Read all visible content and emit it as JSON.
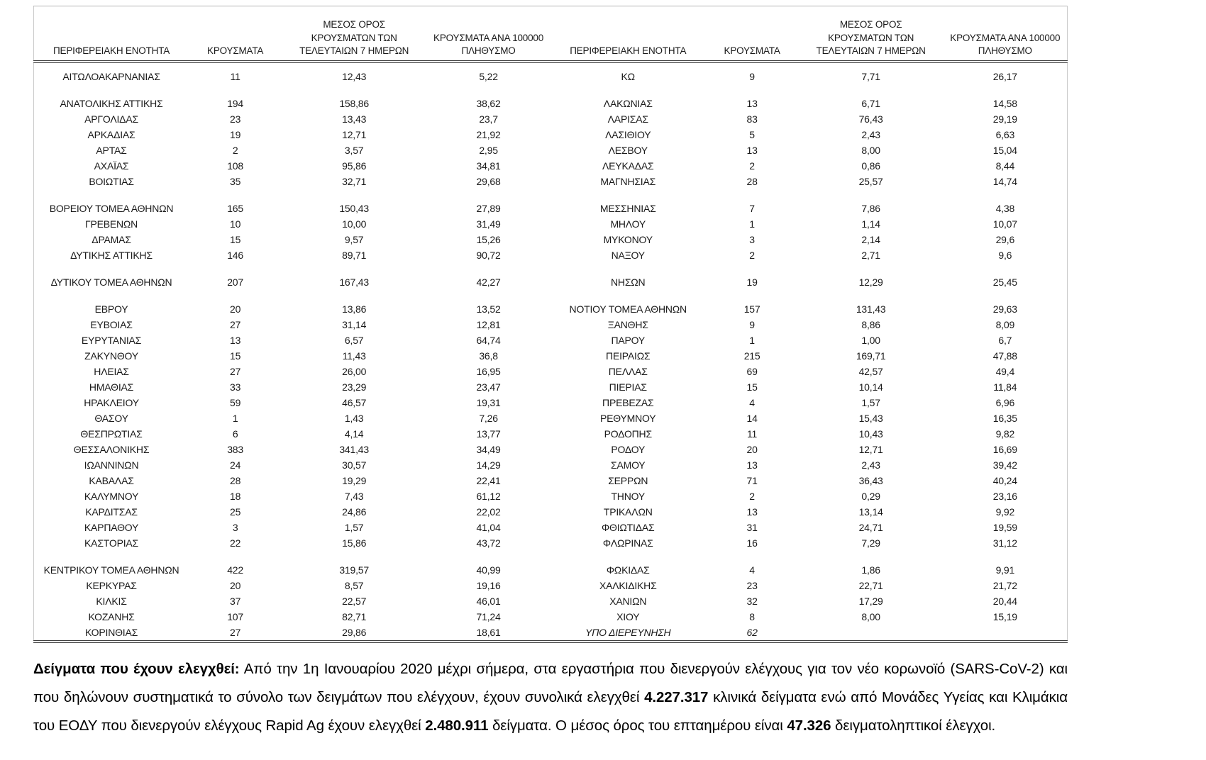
{
  "table": {
    "headers": {
      "region": "ΠΕΡΙΦΕΡΕΙΑΚΗ ΕΝΟΤΗΤΑ",
      "cases": "ΚΡΟΥΣΜΑΤΑ",
      "avg7": "ΜΕΣΟΣ ΟΡΟΣ\nΚΡΟΥΣΜΑΤΩΝ ΤΩΝ\nΤΕΛΕΥΤΑΙΩΝ 7 ΗΜΕΡΩΝ",
      "per100k": "ΚΡΟΥΣΜΑΤΑ ΑΝΑ 100000\nΠΛΗΘΥΣΜΟ"
    },
    "rows": [
      {
        "cells": [
          "ΑΙΤΩΛΟΑΚΑΡΝΑΝΙΑΣ",
          "11",
          "12,43",
          "5,22",
          "ΚΩ",
          "9",
          "7,71",
          "26,17"
        ]
      },
      {
        "cells": [
          "",
          "",
          "",
          "",
          "",
          "",
          "",
          ""
        ]
      },
      {
        "cells": [
          "ΑΝΑΤΟΛΙΚΗΣ ΑΤΤΙΚΗΣ",
          "194",
          "158,86",
          "38,62",
          "ΛΑΚΩΝΙΑΣ",
          "13",
          "6,71",
          "14,58"
        ]
      },
      {
        "cells": [
          "ΑΡΓΟΛΙΔΑΣ",
          "23",
          "13,43",
          "23,7",
          "ΛΑΡΙΣΑΣ",
          "83",
          "76,43",
          "29,19"
        ]
      },
      {
        "cells": [
          "ΑΡΚΑΔΙΑΣ",
          "19",
          "12,71",
          "21,92",
          "ΛΑΣΙΘΙΟΥ",
          "5",
          "2,43",
          "6,63"
        ]
      },
      {
        "cells": [
          "ΑΡΤΑΣ",
          "2",
          "3,57",
          "2,95",
          "ΛΕΣΒΟΥ",
          "13",
          "8,00",
          "15,04"
        ]
      },
      {
        "cells": [
          "ΑΧΑΪΑΣ",
          "108",
          "95,86",
          "34,81",
          "ΛΕΥΚΑΔΑΣ",
          "2",
          "0,86",
          "8,44"
        ]
      },
      {
        "cells": [
          "ΒΟΙΩΤΙΑΣ",
          "35",
          "32,71",
          "29,68",
          "ΜΑΓΝΗΣΙΑΣ",
          "28",
          "25,57",
          "14,74"
        ]
      },
      {
        "cells": [
          "",
          "",
          "",
          "",
          "",
          "",
          "",
          ""
        ]
      },
      {
        "cells": [
          "ΒΟΡΕΙΟΥ ΤΟΜΕΑ ΑΘΗΝΩΝ",
          "165",
          "150,43",
          "27,89",
          "ΜΕΣΣΗΝΙΑΣ",
          "7",
          "7,86",
          "4,38"
        ]
      },
      {
        "cells": [
          "ΓΡΕΒΕΝΩΝ",
          "10",
          "10,00",
          "31,49",
          "ΜΗΛΟΥ",
          "1",
          "1,14",
          "10,07"
        ]
      },
      {
        "cells": [
          "ΔΡΑΜΑΣ",
          "15",
          "9,57",
          "15,26",
          "ΜΥΚΟΝΟΥ",
          "3",
          "2,14",
          "29,6"
        ]
      },
      {
        "cells": [
          "ΔΥΤΙΚΗΣ ΑΤΤΙΚΗΣ",
          "146",
          "89,71",
          "90,72",
          "ΝΑΞΟΥ",
          "2",
          "2,71",
          "9,6"
        ]
      },
      {
        "cells": [
          "",
          "",
          "",
          "",
          "",
          "",
          "",
          ""
        ]
      },
      {
        "cells": [
          "ΔΥΤΙΚΟΥ ΤΟΜΕΑ ΑΘΗΝΩΝ",
          "207",
          "167,43",
          "42,27",
          "ΝΗΣΩΝ",
          "19",
          "12,29",
          "25,45"
        ]
      },
      {
        "cells": [
          "",
          "",
          "",
          "",
          "",
          "",
          "",
          ""
        ]
      },
      {
        "cells": [
          "ΕΒΡΟΥ",
          "20",
          "13,86",
          "13,52",
          "ΝΟΤΙΟΥ ΤΟΜΕΑ ΑΘΗΝΩΝ",
          "157",
          "131,43",
          "29,63"
        ]
      },
      {
        "cells": [
          "ΕΥΒΟΙΑΣ",
          "27",
          "31,14",
          "12,81",
          "ΞΑΝΘΗΣ",
          "9",
          "8,86",
          "8,09"
        ]
      },
      {
        "cells": [
          "ΕΥΡΥΤΑΝΙΑΣ",
          "13",
          "6,57",
          "64,74",
          "ΠΑΡΟΥ",
          "1",
          "1,00",
          "6,7"
        ]
      },
      {
        "cells": [
          "ΖΑΚΥΝΘΟΥ",
          "15",
          "11,43",
          "36,8",
          "ΠΕΙΡΑΙΩΣ",
          "215",
          "169,71",
          "47,88"
        ]
      },
      {
        "cells": [
          "ΗΛΕΙΑΣ",
          "27",
          "26,00",
          "16,95",
          "ΠΕΛΛΑΣ",
          "69",
          "42,57",
          "49,4"
        ]
      },
      {
        "cells": [
          "ΗΜΑΘΙΑΣ",
          "33",
          "23,29",
          "23,47",
          "ΠΙΕΡΙΑΣ",
          "15",
          "10,14",
          "11,84"
        ]
      },
      {
        "cells": [
          "ΗΡΑΚΛΕΙΟΥ",
          "59",
          "46,57",
          "19,31",
          "ΠΡΕΒΕΖΑΣ",
          "4",
          "1,57",
          "6,96"
        ]
      },
      {
        "cells": [
          "ΘΑΣΟΥ",
          "1",
          "1,43",
          "7,26",
          "ΡΕΘΥΜΝΟΥ",
          "14",
          "15,43",
          "16,35"
        ]
      },
      {
        "cells": [
          "ΘΕΣΠΡΩΤΙΑΣ",
          "6",
          "4,14",
          "13,77",
          "ΡΟΔΟΠΗΣ",
          "11",
          "10,43",
          "9,82"
        ]
      },
      {
        "cells": [
          "ΘΕΣΣΑΛΟΝΙΚΗΣ",
          "383",
          "341,43",
          "34,49",
          "ΡΟΔΟΥ",
          "20",
          "12,71",
          "16,69"
        ]
      },
      {
        "cells": [
          "ΙΩΑΝΝΙΝΩΝ",
          "24",
          "30,57",
          "14,29",
          "ΣΑΜΟΥ",
          "13",
          "2,43",
          "39,42"
        ]
      },
      {
        "cells": [
          "ΚΑΒΑΛΑΣ",
          "28",
          "19,29",
          "22,41",
          "ΣΕΡΡΩΝ",
          "71",
          "36,43",
          "40,24"
        ]
      },
      {
        "cells": [
          "ΚΑΛΥΜΝΟΥ",
          "18",
          "7,43",
          "61,12",
          "ΤΗΝΟΥ",
          "2",
          "0,29",
          "23,16"
        ]
      },
      {
        "cells": [
          "ΚΑΡΔΙΤΣΑΣ",
          "25",
          "24,86",
          "22,02",
          "ΤΡΙΚΑΛΩΝ",
          "13",
          "13,14",
          "9,92"
        ]
      },
      {
        "cells": [
          "ΚΑΡΠΑΘΟΥ",
          "3",
          "1,57",
          "41,04",
          "ΦΘΙΩΤΙΔΑΣ",
          "31",
          "24,71",
          "19,59"
        ]
      },
      {
        "cells": [
          "ΚΑΣΤΟΡΙΑΣ",
          "22",
          "15,86",
          "43,72",
          "ΦΛΩΡΙΝΑΣ",
          "16",
          "7,29",
          "31,12"
        ]
      },
      {
        "cells": [
          "",
          "",
          "",
          "",
          "",
          "",
          "",
          ""
        ]
      },
      {
        "cells": [
          "ΚΕΝΤΡΙΚΟΥ ΤΟΜΕΑ ΑΘΗΝΩΝ",
          "422",
          "319,57",
          "40,99",
          "ΦΩΚΙΔΑΣ",
          "4",
          "1,86",
          "9,91"
        ]
      },
      {
        "cells": [
          "ΚΕΡΚΥΡΑΣ",
          "20",
          "8,57",
          "19,16",
          "ΧΑΛΚΙΔΙΚΗΣ",
          "23",
          "22,71",
          "21,72"
        ]
      },
      {
        "cells": [
          "ΚΙΛΚΙΣ",
          "37",
          "22,57",
          "46,01",
          "ΧΑΝΙΩΝ",
          "32",
          "17,29",
          "20,44"
        ]
      },
      {
        "cells": [
          "ΚΟΖΑΝΗΣ",
          "107",
          "82,71",
          "71,24",
          "ΧΙΟΥ",
          "8",
          "8,00",
          "15,19"
        ]
      },
      {
        "cells": [
          "ΚΟΡΙΝΘΙΑΣ",
          "27",
          "29,86",
          "18,61",
          "ΥΠΟ ΔΙΕΡΕΥΝΗΣΗ",
          "62",
          "",
          ""
        ],
        "italic_right": true
      }
    ]
  },
  "footer": {
    "segments": [
      {
        "t": "Δείγματα που έχουν ελεγχθεί:",
        "b": true
      },
      {
        "t": " Από την 1η Ιανουαρίου 2020 μέχρι σήμερα, στα εργαστήρια που διενεργούν ελέγχους για τον νέο κορωνοϊό (SARS-CoV-2) και που δηλώνουν συστηματικά το σύνολο των δειγμάτων που ελέγχουν, έχουν συνολικά ελεγχθεί ",
        "b": false
      },
      {
        "t": "4.227.317",
        "b": true
      },
      {
        "t": " κλινικά δείγματα ενώ από Μονάδες Υγείας και Κλιμάκια του ΕΟΔΥ που διενεργούν ελέγχους Rapid Ag έχουν ελεγχθεί ",
        "b": false
      },
      {
        "t": "2.480.911",
        "b": true
      },
      {
        "t": " δείγματα. Ο μέσος όρος του επταημέρου είναι ",
        "b": false
      },
      {
        "t": "47.326",
        "b": true
      },
      {
        "t": " δειγματοληπτικοί έλεγχοι.",
        "b": false
      }
    ]
  }
}
